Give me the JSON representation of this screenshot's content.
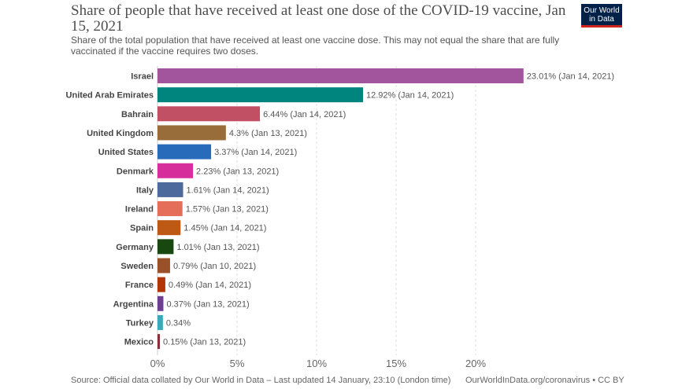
{
  "title": "Share of people that have received at least one dose of the COVID-19 vaccine, Jan 15, 2021",
  "subtitle": "Share of the total population that have received at least one vaccine dose. This may not equal the share that are fully vaccinated if the vaccine requires two doses.",
  "logo": {
    "line1": "Our World",
    "line2": "in Data"
  },
  "footer": {
    "source": "Source: Official data collated by Our World in Data – Last updated 14 January, 23:10 (London time)",
    "link": "OurWorldInData.org/coronavirus • CC BY"
  },
  "chart_data": {
    "type": "bar",
    "orientation": "horizontal",
    "title": "Share of people that have received at least one dose of the COVID-19 vaccine, Jan 15, 2021",
    "xlim": [
      0,
      25
    ],
    "xticks": [
      "0%",
      "5%",
      "10%",
      "15%",
      "20%"
    ],
    "grid": true,
    "categories": [
      "Israel",
      "United Arab Emirates",
      "Bahrain",
      "United Kingdom",
      "United States",
      "Denmark",
      "Italy",
      "Ireland",
      "Spain",
      "Germany",
      "Sweden",
      "France",
      "Argentina",
      "Turkey",
      "Mexico"
    ],
    "values": [
      23.01,
      12.92,
      6.44,
      4.3,
      3.37,
      2.23,
      1.61,
      1.57,
      1.45,
      1.01,
      0.79,
      0.49,
      0.37,
      0.34,
      0.15
    ],
    "labels": [
      "23.01% (Jan 14, 2021)",
      "12.92% (Jan 14, 2021)",
      "6.44% (Jan 14, 2021)",
      "4.3% (Jan 13, 2021)",
      "3.37% (Jan 14, 2021)",
      "2.23% (Jan 13, 2021)",
      "1.61% (Jan 14, 2021)",
      "1.57% (Jan 13, 2021)",
      "1.45% (Jan 14, 2021)",
      "1.01% (Jan 13, 2021)",
      "0.79% (Jan 10, 2021)",
      "0.49% (Jan 14, 2021)",
      "0.37% (Jan 13, 2021)",
      "0.34%",
      "0.15% (Jan 13, 2021)"
    ],
    "colors": [
      "#a2559c",
      "#00847e",
      "#c15065",
      "#996d39",
      "#286bbb",
      "#d62e9b",
      "#4c6a9c",
      "#e56e5a",
      "#be5915",
      "#18470f",
      "#9a5129",
      "#b13507",
      "#6d3e91",
      "#38aaba",
      "#883039"
    ]
  }
}
